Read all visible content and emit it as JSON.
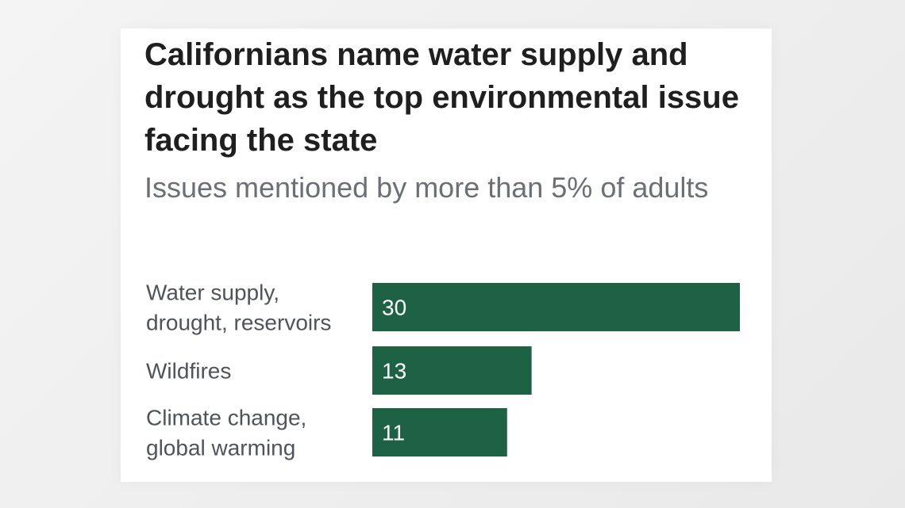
{
  "chart_data": {
    "type": "bar",
    "orientation": "horizontal",
    "title": "Californians name water supply and drought as the top environmental issue facing the state",
    "subtitle": "Issues mentioned by more than 5% of adults",
    "categories": [
      [
        "Water supply,",
        "drought, reservoirs"
      ],
      [
        "Wildfires"
      ],
      [
        "Climate change,",
        "global warming"
      ]
    ],
    "values": [
      30,
      13,
      11
    ],
    "xlim": [
      0,
      30
    ],
    "grid": false,
    "data_labels": true,
    "bar_color": "#1e6246",
    "label_color": "#4f535a",
    "value_label_color": "#ffffff"
  },
  "colors": {
    "title": "#1f1f1f",
    "subtitle": "#6b6f76",
    "background": "#ffffff"
  }
}
